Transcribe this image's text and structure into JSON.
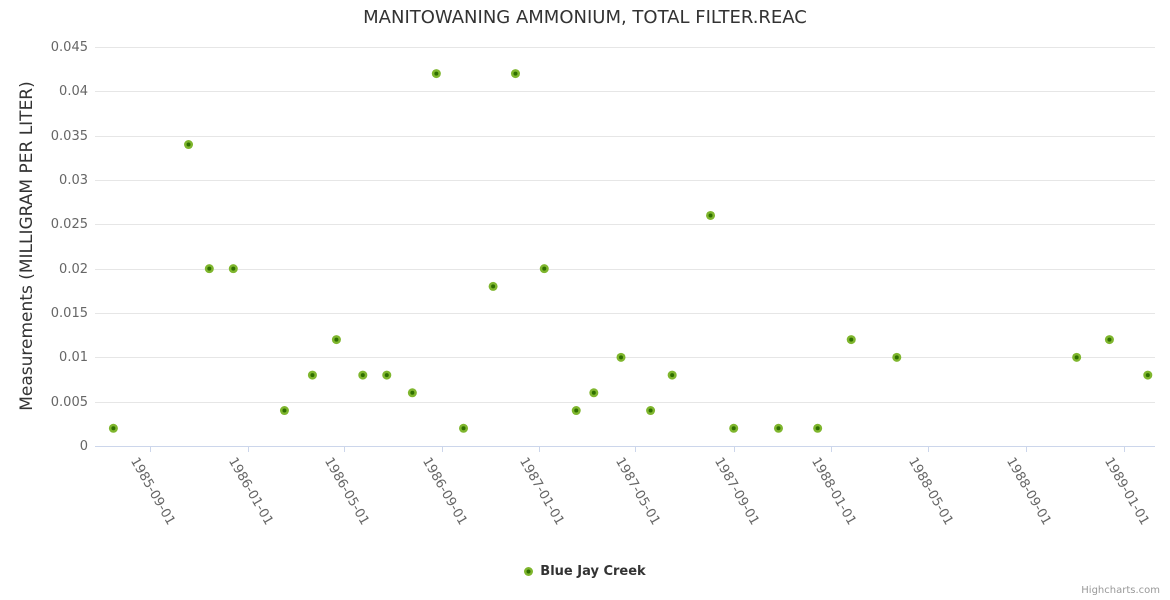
{
  "chart_data": {
    "type": "scatter",
    "title": "MANITOWANING AMMONIUM, TOTAL FILTER.REAC",
    "ylabel": "Measurements (MILLIGRAM PER LITER)",
    "xlabel": "",
    "ylim": [
      0,
      0.045
    ],
    "x_range": [
      "1985-06-24",
      "1989-02-09"
    ],
    "grid": "horizontal",
    "legend_position": "bottom-center",
    "y_ticks": [
      "0",
      "0.005",
      "0.01",
      "0.015",
      "0.02",
      "0.025",
      "0.03",
      "0.035",
      "0.04",
      "0.045"
    ],
    "x_ticks": [
      "1985-09-01",
      "1986-01-01",
      "1986-05-01",
      "1986-09-01",
      "1987-01-01",
      "1987-05-01",
      "1987-09-01",
      "1988-01-01",
      "1988-05-01",
      "1988-09-01",
      "1989-01-01"
    ],
    "series": [
      {
        "name": "Blue Jay Creek",
        "points": [
          {
            "x": "1985-07-17",
            "y": 0.002
          },
          {
            "x": "1985-10-19",
            "y": 0.034
          },
          {
            "x": "1985-11-14",
            "y": 0.02
          },
          {
            "x": "1985-12-14",
            "y": 0.02
          },
          {
            "x": "1986-02-16",
            "y": 0.004
          },
          {
            "x": "1986-03-23",
            "y": 0.008
          },
          {
            "x": "1986-04-22",
            "y": 0.012
          },
          {
            "x": "1986-05-25",
            "y": 0.008
          },
          {
            "x": "1986-06-24",
            "y": 0.008
          },
          {
            "x": "1986-07-26",
            "y": 0.006
          },
          {
            "x": "1986-08-25",
            "y": 0.042
          },
          {
            "x": "1986-09-28",
            "y": 0.002
          },
          {
            "x": "1986-11-04",
            "y": 0.018
          },
          {
            "x": "1986-12-02",
            "y": 0.042
          },
          {
            "x": "1987-01-07",
            "y": 0.02
          },
          {
            "x": "1987-02-16",
            "y": 0.004
          },
          {
            "x": "1987-03-10",
            "y": 0.006
          },
          {
            "x": "1987-04-13",
            "y": 0.01
          },
          {
            "x": "1987-05-20",
            "y": 0.004
          },
          {
            "x": "1987-06-16",
            "y": 0.008
          },
          {
            "x": "1987-08-03",
            "y": 0.026
          },
          {
            "x": "1987-09-01",
            "y": 0.002
          },
          {
            "x": "1987-10-27",
            "y": 0.002
          },
          {
            "x": "1987-12-15",
            "y": 0.002
          },
          {
            "x": "1988-01-26",
            "y": 0.012
          },
          {
            "x": "1988-03-23",
            "y": 0.01
          },
          {
            "x": "1988-11-03",
            "y": 0.01
          },
          {
            "x": "1988-12-14",
            "y": 0.012
          },
          {
            "x": "1989-01-31",
            "y": 0.008
          }
        ]
      }
    ],
    "colors": {
      "marker": "#7fb62e",
      "marker_center": "#2f6f00",
      "grid": "#e6e6e6",
      "axis_line": "#ccd6eb",
      "title_text": "#333333",
      "label_text": "#666666",
      "credits_text": "#999999"
    },
    "credits": "Highcharts.com"
  }
}
